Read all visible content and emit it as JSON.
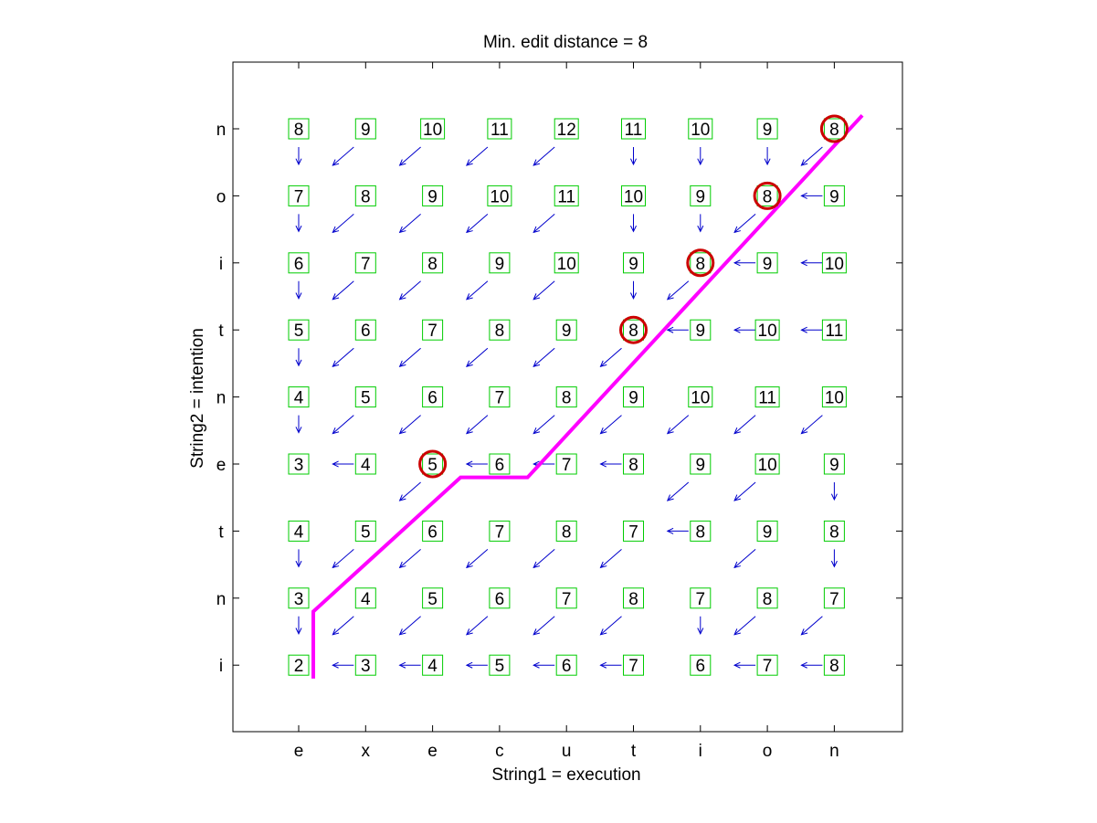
{
  "chart_data": {
    "type": "table",
    "title": "Min. edit distance = 8",
    "xlabel": "String1 = execution",
    "ylabel": "String2 = intention",
    "x_tick_labels": [
      "e",
      "x",
      "e",
      "c",
      "u",
      "t",
      "i",
      "o",
      "n"
    ],
    "y_tick_labels_bottom_to_top": [
      "i",
      "n",
      "t",
      "e",
      "n",
      "t",
      "i",
      "o",
      "n"
    ],
    "grid": false,
    "rows_top_to_bottom": [
      {
        "label": "n",
        "values": [
          8,
          9,
          10,
          11,
          12,
          11,
          10,
          9,
          8
        ],
        "pointers": [
          "down",
          "diag",
          "diag",
          "diag",
          "diag",
          "down",
          "down",
          "down",
          "diag"
        ]
      },
      {
        "label": "o",
        "values": [
          7,
          8,
          9,
          10,
          11,
          10,
          9,
          8,
          9
        ],
        "pointers": [
          "down",
          "diag",
          "diag",
          "diag",
          "diag",
          "down",
          "down",
          "diag",
          "left"
        ]
      },
      {
        "label": "i",
        "values": [
          6,
          7,
          8,
          9,
          10,
          9,
          8,
          9,
          10
        ],
        "pointers": [
          "down",
          "diag",
          "diag",
          "diag",
          "diag",
          "down",
          "diag",
          "left",
          "left"
        ]
      },
      {
        "label": "t",
        "values": [
          5,
          6,
          7,
          8,
          9,
          8,
          9,
          10,
          11
        ],
        "pointers": [
          "down",
          "diag",
          "diag",
          "diag",
          "diag",
          "diag",
          "left",
          "left",
          "left"
        ]
      },
      {
        "label": "n",
        "values": [
          4,
          5,
          6,
          7,
          8,
          9,
          10,
          11,
          10
        ],
        "pointers": [
          "down",
          "diag",
          "diag",
          "diag",
          "diag",
          "diag",
          "diag",
          "diag",
          "diag"
        ]
      },
      {
        "label": "e",
        "values": [
          3,
          4,
          5,
          6,
          7,
          8,
          9,
          10,
          9
        ],
        "pointers": [
          "",
          "left",
          "diag",
          "left",
          "left",
          "left",
          "diag",
          "diag",
          "down"
        ]
      },
      {
        "label": "t",
        "values": [
          4,
          5,
          6,
          7,
          8,
          7,
          8,
          9,
          8
        ],
        "pointers": [
          "down",
          "diag",
          "diag",
          "diag",
          "diag",
          "diag",
          "left",
          "diag",
          "down"
        ]
      },
      {
        "label": "n",
        "values": [
          3,
          4,
          5,
          6,
          7,
          8,
          7,
          8,
          7
        ],
        "pointers": [
          "down",
          "diag",
          "diag",
          "diag",
          "diag",
          "diag",
          "down",
          "diag",
          "diag"
        ]
      },
      {
        "label": "i",
        "values": [
          2,
          3,
          4,
          5,
          6,
          7,
          6,
          7,
          8
        ],
        "pointers": [
          "",
          "left",
          "left",
          "left",
          "left",
          "left",
          "",
          "left",
          "left"
        ]
      }
    ],
    "path_cells_col_row_from_top": [
      [
        2,
        5
      ],
      [
        5,
        3
      ],
      [
        6,
        2
      ],
      [
        7,
        1
      ],
      [
        8,
        0
      ]
    ],
    "path_line_points": [
      [
        0,
        8.2
      ],
      [
        0,
        7.2
      ],
      [
        2.2,
        5.2
      ],
      [
        3.2,
        5.2
      ],
      [
        8.2,
        -0.2
      ]
    ],
    "colors": {
      "cell_border": "#00cc00",
      "arrow": "#0000cc",
      "circle": "#cc0000",
      "path": "#ff00ff",
      "axes": "#000000"
    }
  }
}
